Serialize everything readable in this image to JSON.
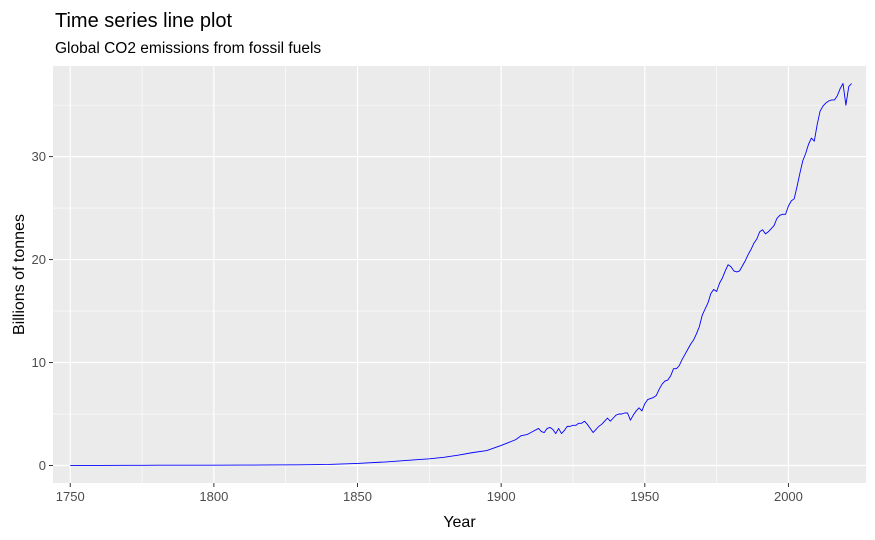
{
  "chart_data": {
    "type": "line",
    "title": "Time series line plot",
    "subtitle": "Global CO2 emissions from fossil fuels",
    "xlabel": "Year",
    "ylabel": "Billions of tonnes",
    "xlim": [
      1744,
      2027
    ],
    "ylim": [
      -1.7,
      38.8
    ],
    "x_ticks": [
      1750,
      1800,
      1850,
      1900,
      1950,
      2000
    ],
    "y_ticks": [
      0,
      10,
      20,
      30
    ],
    "grid": true,
    "legend": "none",
    "colors": {
      "panel": "#ebebeb",
      "grid": "#ffffff",
      "line": "#0000ff",
      "tick": "#4d4d4d"
    },
    "series": [
      {
        "x": [
          1750,
          1760,
          1770,
          1776,
          1780,
          1790,
          1800,
          1810,
          1820,
          1830,
          1840,
          1850,
          1860,
          1870,
          1875,
          1880,
          1885,
          1890,
          1895,
          1900,
          1905,
          1907,
          1909,
          1911,
          1913,
          1914,
          1915,
          1916,
          1917,
          1918,
          1919,
          1920,
          1921,
          1922,
          1923,
          1924,
          1925,
          1926,
          1927,
          1928,
          1929,
          1930,
          1931,
          1932,
          1933,
          1934,
          1935,
          1936,
          1937,
          1938,
          1939,
          1940,
          1941,
          1942,
          1943,
          1944,
          1945,
          1946,
          1947,
          1948,
          1949,
          1950,
          1951,
          1952,
          1953,
          1954,
          1955,
          1956,
          1957,
          1958,
          1959,
          1960,
          1961,
          1962,
          1963,
          1964,
          1965,
          1966,
          1967,
          1968,
          1969,
          1970,
          1971,
          1972,
          1973,
          1974,
          1975,
          1976,
          1977,
          1978,
          1979,
          1980,
          1981,
          1982,
          1983,
          1984,
          1985,
          1986,
          1987,
          1988,
          1989,
          1990,
          1991,
          1992,
          1993,
          1994,
          1995,
          1996,
          1997,
          1998,
          1999,
          2000,
          2001,
          2002,
          2003,
          2004,
          2005,
          2006,
          2007,
          2008,
          2009,
          2010,
          2011,
          2012,
          2013,
          2014,
          2015,
          2016,
          2017,
          2018,
          2019,
          2020,
          2021,
          2022
        ],
        "y": [
          0.01,
          0.01,
          0.02,
          0.02,
          0.03,
          0.03,
          0.03,
          0.04,
          0.05,
          0.07,
          0.1,
          0.2,
          0.35,
          0.55,
          0.65,
          0.8,
          1.0,
          1.25,
          1.45,
          1.95,
          2.5,
          2.9,
          3.0,
          3.3,
          3.6,
          3.3,
          3.2,
          3.6,
          3.7,
          3.5,
          3.1,
          3.6,
          3.1,
          3.4,
          3.8,
          3.8,
          3.9,
          3.9,
          4.1,
          4.1,
          4.3,
          4.0,
          3.6,
          3.2,
          3.5,
          3.8,
          4.0,
          4.3,
          4.6,
          4.3,
          4.6,
          4.9,
          5.0,
          5.0,
          5.1,
          5.1,
          4.4,
          4.9,
          5.3,
          5.6,
          5.3,
          6.0,
          6.4,
          6.5,
          6.6,
          6.8,
          7.4,
          7.9,
          8.2,
          8.3,
          8.7,
          9.4,
          9.4,
          9.7,
          10.3,
          10.8,
          11.3,
          11.8,
          12.2,
          12.8,
          13.5,
          14.6,
          15.2,
          15.8,
          16.7,
          17.1,
          16.9,
          17.7,
          18.2,
          18.9,
          19.5,
          19.3,
          18.9,
          18.8,
          18.9,
          19.4,
          19.9,
          20.5,
          21.0,
          21.6,
          22.0,
          22.7,
          22.9,
          22.5,
          22.7,
          23.0,
          23.3,
          24.0,
          24.3,
          24.4,
          24.4,
          25.2,
          25.7,
          25.9,
          27.1,
          28.4,
          29.6,
          30.3,
          31.2,
          31.8,
          31.5,
          33.1,
          34.4,
          34.9,
          35.2,
          35.4,
          35.5,
          35.5,
          35.9,
          36.6,
          37.1,
          35.0,
          36.8,
          37.1
        ]
      }
    ]
  }
}
